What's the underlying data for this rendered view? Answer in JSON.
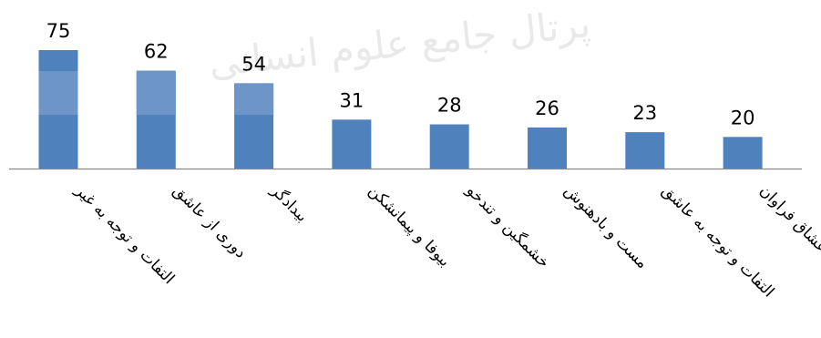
{
  "chart_data": {
    "type": "bar",
    "categories": [
      "التفات و توجه به غیر",
      "دوری از عاشق",
      "بیدادگر",
      "بیوفا و پیمانشکن",
      "خشمگین و تندخو",
      "مست و بادهنوش",
      "التفات و توجه به عاشق",
      "عشاق فراوان"
    ],
    "values": [
      75,
      62,
      54,
      31,
      28,
      26,
      23,
      20
    ],
    "colors": {
      "bar": "#4f81bd",
      "bar_light": "#6d95c8",
      "axis": "#898989"
    },
    "watermark": "پرتال جامع علوم انسانی",
    "ylim": [
      0,
      80
    ],
    "grid": false,
    "legend": "none"
  }
}
